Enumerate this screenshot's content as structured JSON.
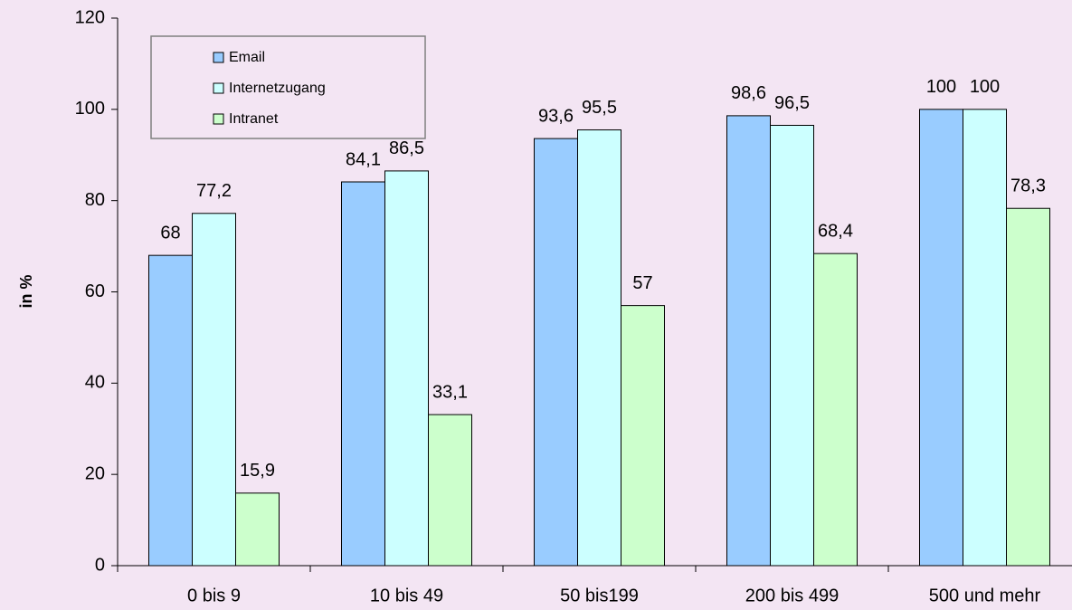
{
  "chart_data": {
    "type": "bar",
    "y_label": "in %",
    "categories": [
      "0 bis 9",
      "10 bis 49",
      "50 bis199",
      "200 bis 499",
      "500 und mehr"
    ],
    "series": [
      {
        "name": "Email",
        "color": "#99ccff",
        "values": [
          68,
          84.1,
          93.6,
          98.6,
          100
        ],
        "value_labels": [
          "68",
          "84,1",
          "93,6",
          "98,6",
          "100"
        ]
      },
      {
        "name": "Internetzugang",
        "color": "#ccffff",
        "values": [
          77.2,
          86.5,
          95.5,
          96.5,
          100
        ],
        "value_labels": [
          "77,2",
          "86,5",
          "95,5",
          "96,5",
          "100"
        ]
      },
      {
        "name": "Intranet",
        "color": "#ccffcc",
        "values": [
          15.9,
          33.1,
          57,
          68.4,
          78.3
        ],
        "value_labels": [
          "15,9",
          "33,1",
          "57",
          "68,4",
          "78,3"
        ]
      }
    ],
    "ylim": [
      0,
      120
    ],
    "yticks": [
      0,
      20,
      40,
      60,
      80,
      100,
      120
    ],
    "grid": false,
    "legend": "upper left"
  }
}
